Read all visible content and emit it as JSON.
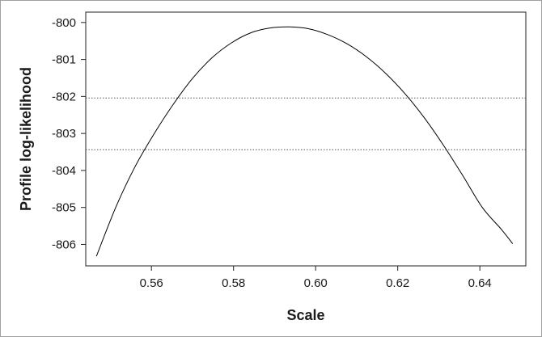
{
  "chart_data": {
    "type": "line",
    "title": "",
    "xlabel": "Scale",
    "ylabel": "Profile log-likelihood",
    "xlim": [
      0.544,
      0.6512
    ],
    "ylim": [
      -806.58,
      -799.72
    ],
    "x_ticks": [
      0.56,
      0.58,
      0.6,
      0.62,
      0.64
    ],
    "x_tick_labels": [
      "0.56",
      "0.58",
      "0.60",
      "0.62",
      "0.64"
    ],
    "y_ticks": [
      -800,
      -801,
      -802,
      -803,
      -804,
      -805,
      -806
    ],
    "y_tick_labels": [
      "-800",
      "-801",
      "-802",
      "-803",
      "-804",
      "-805",
      "-806"
    ],
    "grid": false,
    "legend": "none",
    "colors": {
      "curve": "#000000",
      "reference_line": "#555555",
      "frame": "#a0a0a0"
    },
    "series": [
      {
        "x": [
          0.5466,
          0.5513,
          0.556,
          0.5607,
          0.5654,
          0.5701,
          0.5748,
          0.5795,
          0.5842,
          0.5889,
          0.5936,
          0.5983,
          0.603,
          0.6077,
          0.6124,
          0.6171,
          0.6218,
          0.6265,
          0.6312,
          0.6359,
          0.6406,
          0.6453,
          0.648
        ],
        "y": [
          -806.32,
          -805.0,
          -803.9,
          -803.0,
          -802.2,
          -801.5,
          -800.95,
          -800.55,
          -800.28,
          -800.15,
          -800.12,
          -800.17,
          -800.33,
          -800.58,
          -800.93,
          -801.38,
          -801.93,
          -802.58,
          -803.33,
          -804.15,
          -805.0,
          -805.6,
          -805.98
        ]
      }
    ],
    "reference_lines": [
      {
        "orientation": "horizontal",
        "y": -802.04,
        "style": "dotted"
      },
      {
        "orientation": "horizontal",
        "y": -803.44,
        "style": "dotted"
      }
    ]
  }
}
